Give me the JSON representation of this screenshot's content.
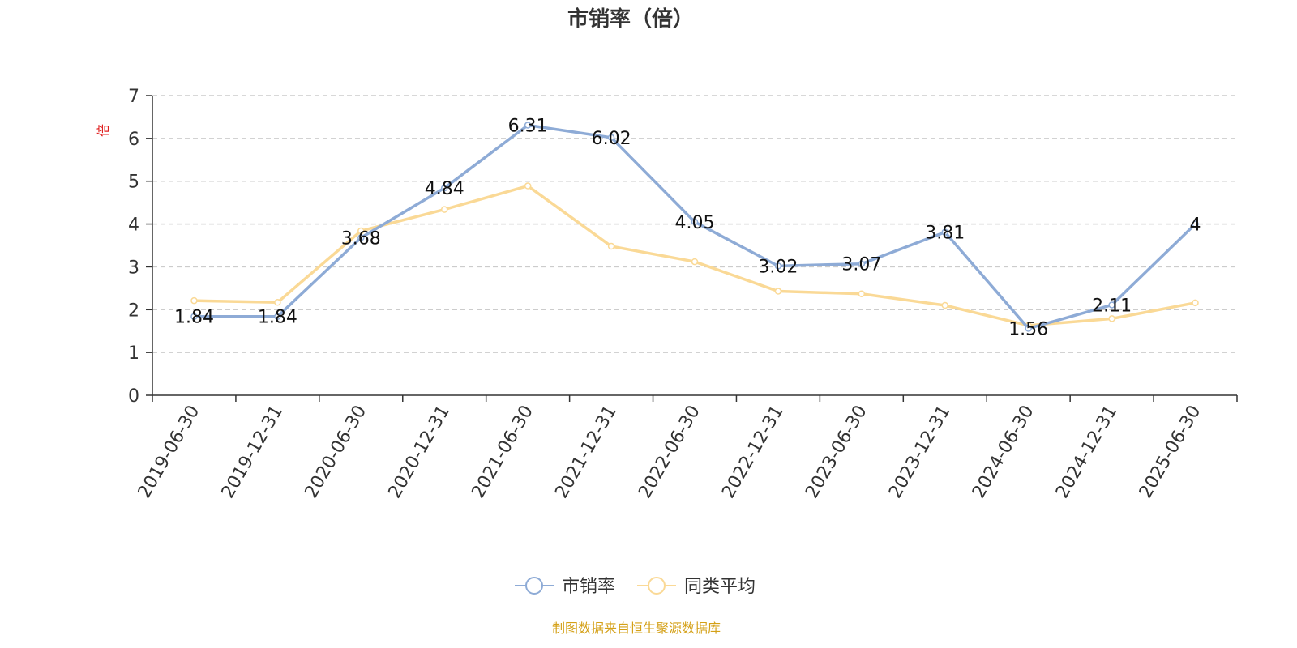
{
  "chart_data": {
    "type": "line",
    "title": "市销率（倍）",
    "ylabel": "倍",
    "ylim": [
      0,
      7
    ],
    "yticks": [
      0,
      1,
      2,
      3,
      4,
      5,
      6,
      7
    ],
    "grid": true,
    "legend_position": "bottom-center",
    "categories": [
      "2019-06-30",
      "2019-12-31",
      "2020-06-30",
      "2020-12-31",
      "2021-06-30",
      "2021-12-31",
      "2022-06-30",
      "2022-12-31",
      "2023-06-30",
      "2023-12-31",
      "2024-06-30",
      "2024-12-31",
      "2025-06-30"
    ],
    "series": [
      {
        "name": "市销率",
        "color": "#8eabd6",
        "values": [
          1.84,
          1.84,
          3.68,
          4.84,
          6.31,
          6.02,
          4.05,
          3.02,
          3.07,
          3.81,
          1.56,
          2.11,
          4
        ],
        "labels": [
          "1.84",
          "1.84",
          "3.68",
          "4.84",
          "6.31",
          "6.02",
          "4.05",
          "3.02",
          "3.07",
          "3.81",
          "1.56",
          "2.11",
          "4"
        ]
      },
      {
        "name": "同类平均",
        "color": "#fad996",
        "values": [
          2.21,
          2.17,
          3.84,
          4.34,
          4.89,
          3.48,
          3.12,
          2.43,
          2.37,
          2.1,
          1.63,
          1.79,
          2.16
        ]
      }
    ]
  },
  "source_text": "制图数据来自恒生聚源数据库",
  "colors": {
    "axis": "#333333",
    "grid": "#cccccc",
    "unit_label": "#e02020",
    "source_text": "#d4a017"
  }
}
